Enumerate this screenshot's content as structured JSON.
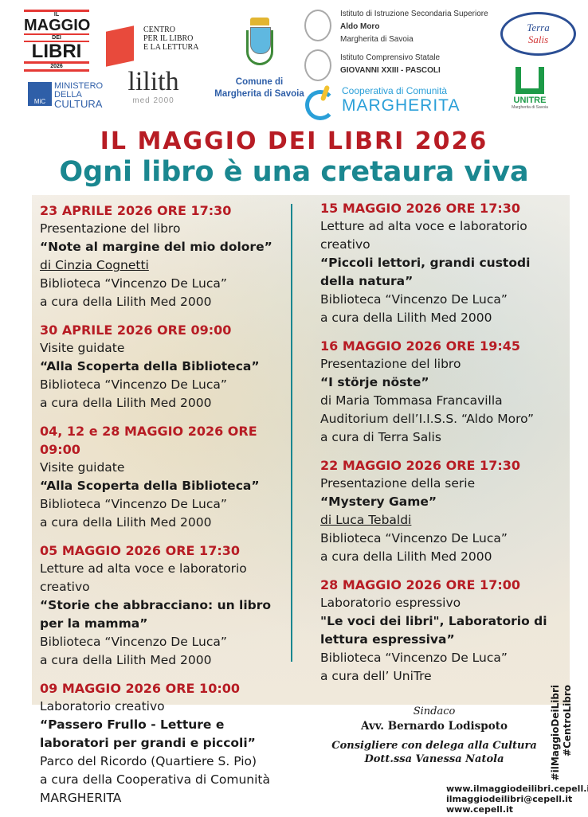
{
  "logos": {
    "maggio": {
      "top": "IL",
      "l1": "MAGGIO",
      "mid": "DEI",
      "l2": "LIBRI",
      "year": "2026"
    },
    "cepell": [
      "CENTRO",
      "PER IL LIBRO",
      "E LA LETTURA"
    ],
    "ministero": [
      "MINISTERO",
      "DELLA",
      "CULTURA"
    ],
    "ministero_badge": "MiC",
    "lilith": {
      "name": "lilith",
      "sub": "med 2000"
    },
    "comune": [
      "Comune di",
      "Margherita di Savoia"
    ],
    "iiss": [
      "Istituto di Istruzione Secondaria Superiore",
      "Aldo Moro",
      "Margherita di Savoia"
    ],
    "ics": [
      "Istituto Comprensivo Statale",
      "GIOVANNI XXIII - PASCOLI"
    ],
    "cooperativa": [
      "Cooperativa di Comunità",
      "MARGHERITA"
    ],
    "terra_salis": [
      "Terra",
      "Salis"
    ],
    "unitre": {
      "name": "UNITRE",
      "sub": "Margherita di Savoia"
    }
  },
  "title": "IL MAGGIO DEI LIBRI 2026",
  "subtitle": "Ogni libro è una cretaura viva",
  "colors": {
    "red": "#b71c24",
    "teal": "#1a8790"
  },
  "left_events": [
    {
      "date": "23 APRILE 2026 ORE 17:30",
      "lines": [
        {
          "text": "Presentazione del libro",
          "style": "normal"
        },
        {
          "text": "“Note al margine del mio dolore”",
          "style": "bold"
        },
        {
          "text": "di Cinzia Cognetti",
          "style": "underline"
        },
        {
          "text": "Biblioteca “Vincenzo De Luca”",
          "style": "normal"
        },
        {
          "text": "a cura della Lilith Med 2000",
          "style": "normal"
        }
      ]
    },
    {
      "date": "30 APRILE 2026 ORE 09:00",
      "lines": [
        {
          "text": "Visite guidate",
          "style": "normal"
        },
        {
          "text": "“Alla Scoperta della Biblioteca”",
          "style": "bold"
        },
        {
          "text": "Biblioteca “Vincenzo De Luca”",
          "style": "normal"
        },
        {
          "text": "a cura della Lilith Med 2000",
          "style": "normal"
        }
      ]
    },
    {
      "date": "04, 12 e 28 MAGGIO 2026 ORE 09:00",
      "lines": [
        {
          "text": "Visite guidate",
          "style": "normal"
        },
        {
          "text": "“Alla Scoperta della Biblioteca”",
          "style": "bold"
        },
        {
          "text": "Biblioteca “Vincenzo De Luca”",
          "style": "normal"
        },
        {
          "text": "a cura della Lilith Med 2000",
          "style": "normal"
        }
      ]
    },
    {
      "date": "05 MAGGIO 2026 ORE 17:30",
      "lines": [
        {
          "text": "Letture ad alta voce e laboratorio creativo",
          "style": "normal"
        },
        {
          "text": "“Storie che abbracciano: un libro per la mamma”",
          "style": "bold"
        },
        {
          "text": "Biblioteca “Vincenzo De Luca”",
          "style": "normal"
        },
        {
          "text": "a cura della Lilith Med 2000",
          "style": "normal"
        }
      ]
    },
    {
      "date": "09 MAGGIO 2026 ORE 10:00",
      "lines": [
        {
          "text": "Laboratorio creativo",
          "style": "normal"
        },
        {
          "text": "“Passero Frullo - Letture e laboratori per grandi e piccoli”",
          "style": "bold"
        },
        {
          "text": "Parco del Ricordo (Quartiere S. Pio)",
          "style": "normal"
        },
        {
          "text": "a cura della Cooperativa di Comunità MARGHERITA",
          "style": "normal"
        }
      ]
    }
  ],
  "right_events": [
    {
      "date": "15 MAGGIO 2026 ORE 17:30",
      "lines": [
        {
          "text": "Letture ad alta voce e laboratorio creativo",
          "style": "normal"
        },
        {
          "text": "“Piccoli lettori, grandi custodi della natura”",
          "style": "bold"
        },
        {
          "text": "Biblioteca “Vincenzo De Luca”",
          "style": "normal"
        },
        {
          "text": "a cura della Lilith Med 2000",
          "style": "normal"
        }
      ]
    },
    {
      "date": "16 MAGGIO 2026 ORE 19:45",
      "lines": [
        {
          "text": "Presentazione del libro",
          "style": "normal"
        },
        {
          "text": "“I störje nöste”",
          "style": "bold"
        },
        {
          "text": "di Maria Tommasa Francavilla",
          "style": "normal"
        },
        {
          "text": "Auditorium dell’I.I.S.S. “Aldo Moro”",
          "style": "normal"
        },
        {
          "text": "a cura di Terra Salis",
          "style": "normal"
        }
      ]
    },
    {
      "date": "22 MAGGIO 2026 ORE 17:30",
      "lines": [
        {
          "text": "Presentazione della serie",
          "style": "normal"
        },
        {
          "text": "“Mystery Game”",
          "style": "bold"
        },
        {
          "text": "di Luca Tebaldi",
          "style": "underline"
        },
        {
          "text": "Biblioteca “Vincenzo De Luca”",
          "style": "normal"
        },
        {
          "text": "a cura della Lilith Med 2000",
          "style": "normal"
        }
      ]
    },
    {
      "date": "28 MAGGIO 2026 ORE 17:00",
      "lines": [
        {
          "text": "Laboratorio espressivo",
          "style": "normal"
        },
        {
          "text": "\"Le voci dei libri\", Laboratorio di lettura espressiva”",
          "style": "bold"
        },
        {
          "text": "Biblioteca “Vincenzo De Luca”",
          "style": "normal"
        },
        {
          "text": "a cura dell’ UniTre",
          "style": "normal"
        }
      ]
    }
  ],
  "signatures": {
    "role1": "Sindaco",
    "name1": "Avv. Bernardo Lodispoto",
    "role2": "Consigliere con delega alla Cultura",
    "name2": "Dott.ssa Vanessa Natola"
  },
  "hashtags": [
    "#ilMaggioDeiLibri",
    "#CentroLibro"
  ],
  "contacts": [
    "www.ilmaggiodeilibri.cepell.it",
    "ilmaggiodeilibri@cepell.it",
    "www.cepell.it"
  ]
}
